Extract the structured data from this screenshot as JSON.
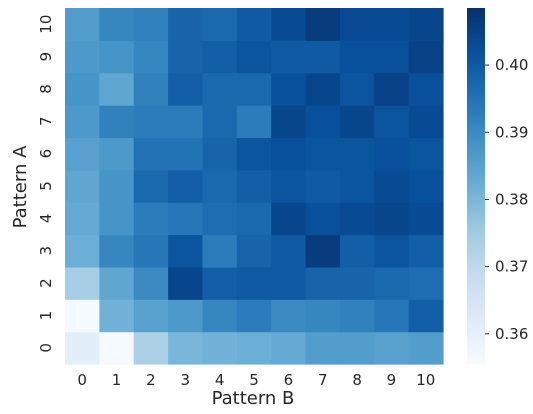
{
  "chart_data": {
    "type": "heatmap",
    "title": "",
    "xlabel": "Pattern B",
    "ylabel": "Pattern A",
    "x": [
      "0",
      "1",
      "2",
      "3",
      "4",
      "5",
      "6",
      "7",
      "8",
      "9",
      "10"
    ],
    "y": [
      "0",
      "1",
      "2",
      "3",
      "4",
      "5",
      "6",
      "7",
      "8",
      "9",
      "10"
    ],
    "colorbar": {
      "range": [
        0.3555,
        0.4085
      ],
      "ticks": [
        "0.36",
        "0.37",
        "0.38",
        "0.39",
        "0.40"
      ],
      "colormap": "Blues",
      "colors": [
        "#f7fbff",
        "#deebf7",
        "#c6dbef",
        "#9ecae1",
        "#6baed6",
        "#4292c6",
        "#2171b5",
        "#08519c",
        "#08306b"
      ]
    },
    "values": [
      [
        0.361,
        0.356,
        0.373,
        0.38,
        0.381,
        0.382,
        0.383,
        0.386,
        0.386,
        0.385,
        0.386
      ],
      [
        0.356,
        0.381,
        0.385,
        0.387,
        0.391,
        0.393,
        0.39,
        0.391,
        0.392,
        0.394,
        0.399
      ],
      [
        0.374,
        0.384,
        0.39,
        0.404,
        0.399,
        0.4,
        0.4,
        0.398,
        0.398,
        0.397,
        0.396
      ],
      [
        0.382,
        0.391,
        0.394,
        0.401,
        0.393,
        0.398,
        0.4,
        0.406,
        0.399,
        0.401,
        0.399
      ],
      [
        0.383,
        0.388,
        0.393,
        0.394,
        0.396,
        0.397,
        0.404,
        0.402,
        0.403,
        0.404,
        0.403
      ],
      [
        0.384,
        0.388,
        0.397,
        0.399,
        0.397,
        0.399,
        0.401,
        0.4,
        0.401,
        0.403,
        0.402
      ],
      [
        0.385,
        0.387,
        0.395,
        0.395,
        0.398,
        0.401,
        0.402,
        0.401,
        0.401,
        0.402,
        0.401
      ],
      [
        0.387,
        0.392,
        0.393,
        0.393,
        0.397,
        0.393,
        0.404,
        0.402,
        0.404,
        0.401,
        0.403
      ],
      [
        0.388,
        0.384,
        0.392,
        0.399,
        0.397,
        0.397,
        0.402,
        0.404,
        0.401,
        0.405,
        0.402
      ],
      [
        0.387,
        0.388,
        0.391,
        0.398,
        0.399,
        0.401,
        0.4,
        0.4,
        0.402,
        0.402,
        0.405
      ],
      [
        0.386,
        0.391,
        0.392,
        0.398,
        0.397,
        0.4,
        0.403,
        0.406,
        0.403,
        0.403,
        0.404
      ]
    ]
  }
}
